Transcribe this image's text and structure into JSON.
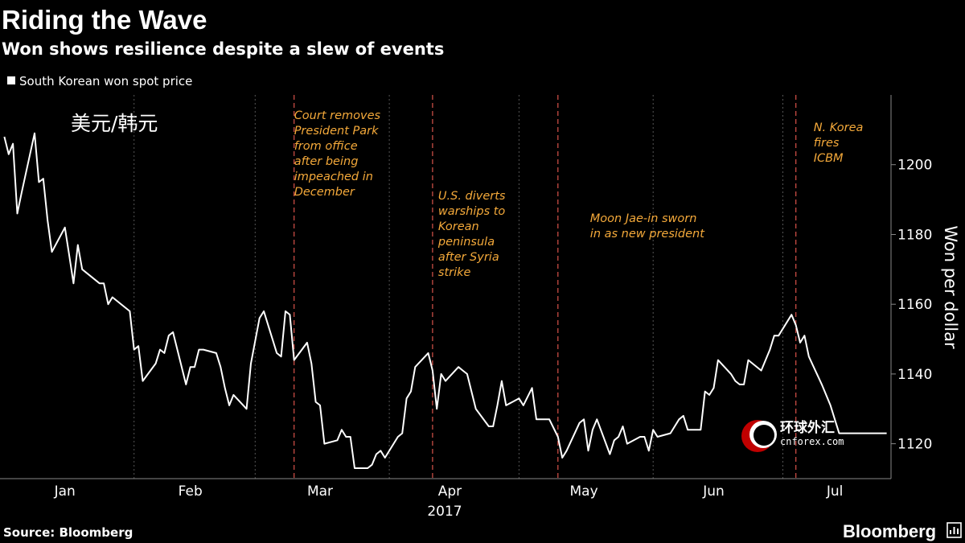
{
  "header": {
    "title": "Riding the Wave",
    "subtitle": "Won shows resilience despite a slew of events"
  },
  "legend": {
    "label": "South Korean won spot price"
  },
  "inset_label": "美元/韩元",
  "footer": {
    "source": "Source: Bloomberg",
    "brand": "Bloomberg"
  },
  "watermark": {
    "cn": "环球外汇",
    "en": "cnforex.com"
  },
  "colors": {
    "background": "#000000",
    "line": "#ffffff",
    "annotation": "#f4a93a",
    "grid": "#555555"
  },
  "chart_data": {
    "type": "line",
    "title": "Riding the Wave",
    "subtitle": "Won shows resilience despite a slew of events",
    "ylabel": "Won per dollar",
    "xlabel": "",
    "year_label": "2017",
    "ylim": [
      1110,
      1220
    ],
    "xlim": [
      "2017-01-01",
      "2017-07-26"
    ],
    "yticks": [
      1120,
      1140,
      1160,
      1180,
      1200
    ],
    "xticks": [
      {
        "label": "Jan",
        "date": "2017-01-16"
      },
      {
        "label": "Feb",
        "date": "2017-02-14"
      },
      {
        "label": "Mar",
        "date": "2017-03-16"
      },
      {
        "label": "Apr",
        "date": "2017-04-15"
      },
      {
        "label": "May",
        "date": "2017-05-16"
      },
      {
        "label": "Jun",
        "date": "2017-06-15"
      },
      {
        "label": "Jul",
        "date": "2017-07-13"
      }
    ],
    "month_separators": [
      "2017-02-01",
      "2017-03-01",
      "2017-04-01",
      "2017-05-01",
      "2017-06-01",
      "2017-07-01"
    ],
    "grid": false,
    "legend_position": "top-left",
    "series": [
      {
        "name": "South Korean won spot price",
        "x": [
          "2017-01-02",
          "2017-01-03",
          "2017-01-04",
          "2017-01-05",
          "2017-01-06",
          "2017-01-09",
          "2017-01-10",
          "2017-01-11",
          "2017-01-12",
          "2017-01-13",
          "2017-01-16",
          "2017-01-17",
          "2017-01-18",
          "2017-01-19",
          "2017-01-20",
          "2017-01-23",
          "2017-01-24",
          "2017-01-25",
          "2017-01-26",
          "2017-01-27",
          "2017-01-31",
          "2017-02-01",
          "2017-02-02",
          "2017-02-03",
          "2017-02-06",
          "2017-02-07",
          "2017-02-08",
          "2017-02-09",
          "2017-02-10",
          "2017-02-13",
          "2017-02-14",
          "2017-02-15",
          "2017-02-16",
          "2017-02-17",
          "2017-02-20",
          "2017-02-21",
          "2017-02-22",
          "2017-02-23",
          "2017-02-24",
          "2017-02-27",
          "2017-02-28",
          "2017-03-02",
          "2017-03-03",
          "2017-03-06",
          "2017-03-07",
          "2017-03-08",
          "2017-03-09",
          "2017-03-10",
          "2017-03-13",
          "2017-03-14",
          "2017-03-15",
          "2017-03-16",
          "2017-03-17",
          "2017-03-20",
          "2017-03-21",
          "2017-03-22",
          "2017-03-23",
          "2017-03-24",
          "2017-03-27",
          "2017-03-28",
          "2017-03-29",
          "2017-03-30",
          "2017-03-31",
          "2017-04-03",
          "2017-04-04",
          "2017-04-05",
          "2017-04-06",
          "2017-04-07",
          "2017-04-10",
          "2017-04-11",
          "2017-04-12",
          "2017-04-13",
          "2017-04-14",
          "2017-04-17",
          "2017-04-18",
          "2017-04-19",
          "2017-04-20",
          "2017-04-21",
          "2017-04-24",
          "2017-04-25",
          "2017-04-26",
          "2017-04-27",
          "2017-04-28",
          "2017-05-01",
          "2017-05-02",
          "2017-05-04",
          "2017-05-05",
          "2017-05-08",
          "2017-05-10",
          "2017-05-11",
          "2017-05-12",
          "2017-05-15",
          "2017-05-16",
          "2017-05-17",
          "2017-05-18",
          "2017-05-19",
          "2017-05-22",
          "2017-05-23",
          "2017-05-24",
          "2017-05-25",
          "2017-05-26",
          "2017-05-29",
          "2017-05-30",
          "2017-05-31",
          "2017-06-01",
          "2017-06-02",
          "2017-06-05",
          "2017-06-07",
          "2017-06-08",
          "2017-06-09",
          "2017-06-12",
          "2017-06-13",
          "2017-06-14",
          "2017-06-15",
          "2017-06-16",
          "2017-06-19",
          "2017-06-20",
          "2017-06-21",
          "2017-06-22",
          "2017-06-23",
          "2017-06-26",
          "2017-06-27",
          "2017-06-28",
          "2017-06-29",
          "2017-06-30",
          "2017-07-03",
          "2017-07-04",
          "2017-07-05",
          "2017-07-06",
          "2017-07-07",
          "2017-07-10",
          "2017-07-11",
          "2017-07-12",
          "2017-07-13",
          "2017-07-14",
          "2017-07-17",
          "2017-07-18",
          "2017-07-19",
          "2017-07-20",
          "2017-07-21",
          "2017-07-24",
          "2017-07-25"
        ],
        "values": [
          1208,
          1203,
          1206,
          1186,
          1192,
          1209,
          1195,
          1196,
          1184,
          1175,
          1182,
          1174,
          1166,
          1177,
          1170,
          1167,
          1166,
          1166,
          1160,
          1162,
          1158,
          1147,
          1148,
          1138,
          1143,
          1147,
          1146,
          1151,
          1152,
          1137,
          1142,
          1142,
          1147,
          1147,
          1146,
          1142,
          1136,
          1131,
          1134,
          1130,
          1143,
          1156,
          1158,
          1146,
          1145,
          1158,
          1157,
          1144,
          1149,
          1143,
          1132,
          1131,
          1120,
          1121,
          1124,
          1122,
          1122,
          1113,
          1113,
          1114,
          1117,
          1118,
          1116,
          1122,
          1123,
          1133,
          1135,
          1142,
          1146,
          1141,
          1130,
          1140,
          1138,
          1142,
          1141,
          1140,
          1135,
          1130,
          1125,
          1125,
          1131,
          1138,
          1131,
          1133,
          1131,
          1136,
          1127,
          1127,
          1122,
          1116,
          1118,
          1126,
          1127,
          1118,
          1124,
          1127,
          1117,
          1121,
          1122,
          1125,
          1120,
          1122,
          1122,
          1118,
          1124,
          1122,
          1123,
          1127,
          1128,
          1124,
          1124,
          1135,
          1134,
          1136,
          1144,
          1140,
          1138,
          1137,
          1137,
          1144,
          1141,
          1144,
          1147,
          1151,
          1151,
          1157,
          1154,
          1149,
          1151,
          1145,
          1137,
          1134,
          1131,
          1127,
          1123,
          1123,
          1123,
          1123,
          1123,
          1123,
          1123,
          1123
        ]
      }
    ],
    "annotations": [
      {
        "date": "2017-03-10",
        "lines": [
          "Court removes",
          "President Park",
          "from office",
          "after being",
          "impeached in",
          "December"
        ]
      },
      {
        "date": "2017-04-11",
        "lines": [
          "U.S. diverts",
          "warships to",
          "Korean",
          "peninsula",
          "after Syria",
          "strike"
        ]
      },
      {
        "date": "2017-05-10",
        "lines": [
          "Moon Jae-in sworn",
          "in as new president"
        ]
      },
      {
        "date": "2017-07-04",
        "lines": [
          "N. Korea",
          "fires",
          "ICBM"
        ]
      }
    ]
  }
}
